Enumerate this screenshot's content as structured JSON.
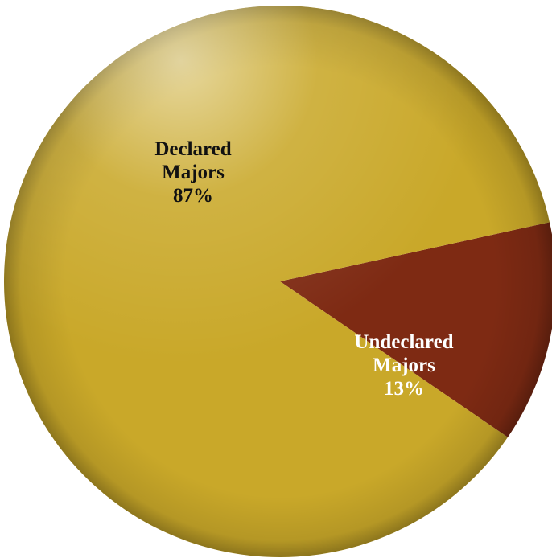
{
  "chart_data": {
    "type": "pie",
    "slices": [
      {
        "label_lines": [
          "Declared",
          "Majors"
        ],
        "value": 87,
        "value_label": "87%",
        "color": "#C9A829",
        "text_color": "#111111"
      },
      {
        "label_lines": [
          "Undeclared",
          "Majors"
        ],
        "value": 13,
        "value_label": "13%",
        "color": "#7E2A13",
        "text_color": "#FFFFFF"
      }
    ],
    "legend": "none"
  }
}
